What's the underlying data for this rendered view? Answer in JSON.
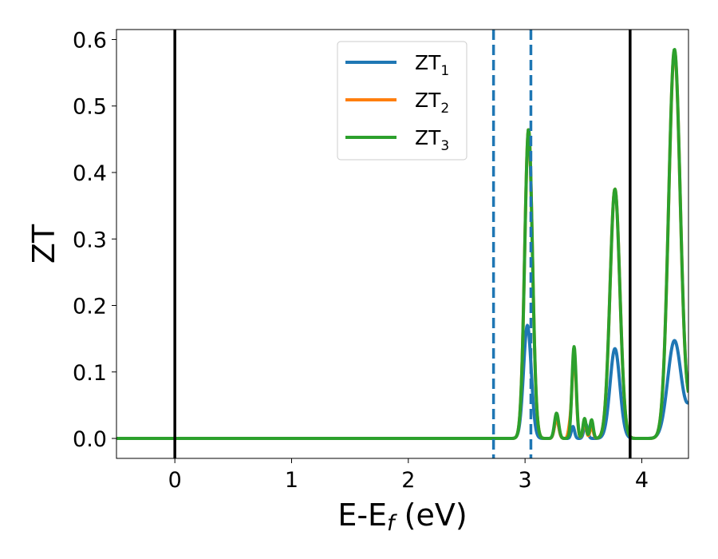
{
  "chart_data": {
    "type": "line",
    "xlabel": {
      "main": "E-E",
      "sub": "f",
      "tail": " (eV)"
    },
    "ylabel": "ZT",
    "xlim": [
      -0.5,
      4.4
    ],
    "ylim": [
      -0.03,
      0.615
    ],
    "xticks": [
      {
        "value": 0,
        "label": "0"
      },
      {
        "value": 1,
        "label": "1"
      },
      {
        "value": 2,
        "label": "2"
      },
      {
        "value": 3,
        "label": "3"
      },
      {
        "value": 4,
        "label": "4"
      }
    ],
    "yticks": [
      {
        "value": 0.0,
        "label": "0.0"
      },
      {
        "value": 0.1,
        "label": "0.1"
      },
      {
        "value": 0.2,
        "label": "0.2"
      },
      {
        "value": 0.3,
        "label": "0.3"
      },
      {
        "value": 0.4,
        "label": "0.4"
      },
      {
        "value": 0.5,
        "label": "0.5"
      },
      {
        "value": 0.6,
        "label": "0.6"
      }
    ],
    "grid": false,
    "legend_position": "top-center",
    "vertical_lines": [
      {
        "x": 0.0,
        "style": "solid",
        "color": "#000000"
      },
      {
        "x": 3.9,
        "style": "solid",
        "color": "#000000"
      },
      {
        "x": 2.73,
        "style": "dashed",
        "color": "#1f77b4"
      },
      {
        "x": 3.05,
        "style": "dashed",
        "color": "#1f77b4"
      }
    ],
    "series": [
      {
        "name": "ZT",
        "sub": "1",
        "color": "#1f77b4",
        "peaks": [
          {
            "x": 3.02,
            "h": 0.17,
            "w": 0.033
          },
          {
            "x": 3.27,
            "h": 0.03,
            "w": 0.018
          },
          {
            "x": 3.41,
            "h": 0.018,
            "w": 0.014
          },
          {
            "x": 3.52,
            "h": 0.022,
            "w": 0.016
          },
          {
            "x": 3.77,
            "h": 0.135,
            "w": 0.042
          },
          {
            "x": 4.28,
            "h": 0.147,
            "w": 0.058
          },
          {
            "x": 4.45,
            "h": 0.06,
            "w": 0.05
          }
        ]
      },
      {
        "name": "ZT",
        "sub": "2",
        "color": "#ff7f0e",
        "peaks": [
          {
            "x": 3.03,
            "h": 0.465,
            "w": 0.033
          },
          {
            "x": 3.27,
            "h": 0.03,
            "w": 0.018
          },
          {
            "x": 3.42,
            "h": 0.128,
            "w": 0.018
          },
          {
            "x": 3.38,
            "h": 0.012,
            "w": 0.012
          },
          {
            "x": 3.51,
            "h": 0.025,
            "w": 0.014
          },
          {
            "x": 3.57,
            "h": 0.018,
            "w": 0.014
          },
          {
            "x": 3.77,
            "h": 0.375,
            "w": 0.042
          },
          {
            "x": 4.28,
            "h": 0.583,
            "w": 0.05
          },
          {
            "x": 4.45,
            "h": 0.06,
            "w": 0.05
          }
        ]
      },
      {
        "name": "ZT",
        "sub": "3",
        "color": "#2ca02c",
        "peaks": [
          {
            "x": 3.03,
            "h": 0.465,
            "w": 0.033
          },
          {
            "x": 3.27,
            "h": 0.038,
            "w": 0.018
          },
          {
            "x": 3.42,
            "h": 0.138,
            "w": 0.018
          },
          {
            "x": 3.51,
            "h": 0.03,
            "w": 0.014
          },
          {
            "x": 3.57,
            "h": 0.028,
            "w": 0.014
          },
          {
            "x": 3.77,
            "h": 0.375,
            "w": 0.042
          },
          {
            "x": 4.28,
            "h": 0.585,
            "w": 0.05
          },
          {
            "x": 4.45,
            "h": 0.06,
            "w": 0.05
          }
        ]
      }
    ]
  }
}
